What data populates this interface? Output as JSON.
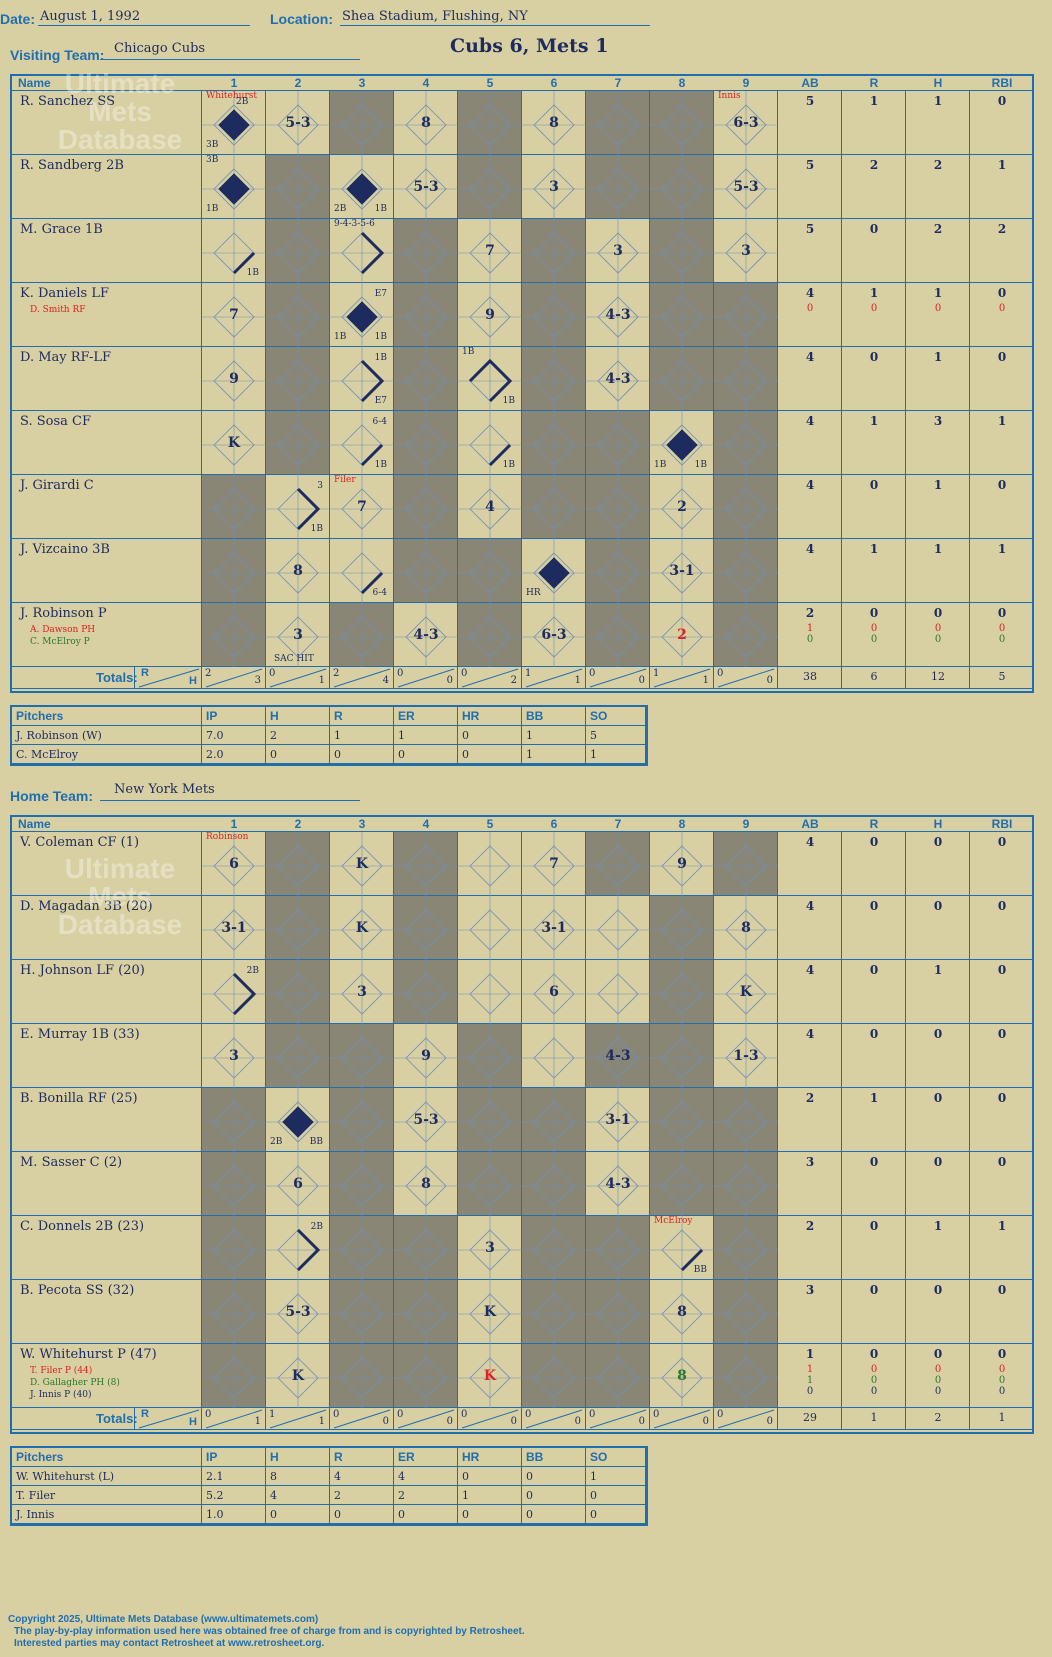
{
  "header": {
    "date_label": "Date:",
    "date": "August 1, 1992",
    "location_label": "Location:",
    "location": "Shea Stadium, Flushing, NY",
    "visiting_label": "Visiting Team:",
    "visiting_team": "Chicago Cubs",
    "score_title": "Cubs 6, Mets 1",
    "home_label": "Home Team:",
    "home_team": "New York Mets"
  },
  "grid_headers": [
    "Name",
    "1",
    "2",
    "3",
    "4",
    "5",
    "6",
    "7",
    "8",
    "9",
    "AB",
    "R",
    "H",
    "RBI"
  ],
  "totals_label": "Totals:",
  "visitors": {
    "batters": [
      {
        "name": "R. Sanchez SS",
        "subs": [],
        "ab": "5",
        "r": "1",
        "h": "1",
        "rbi": "0"
      },
      {
        "name": "R. Sandberg 2B",
        "subs": [],
        "ab": "5",
        "r": "2",
        "h": "2",
        "rbi": "1"
      },
      {
        "name": "M. Grace 1B",
        "subs": [],
        "ab": "5",
        "r": "0",
        "h": "2",
        "rbi": "2"
      },
      {
        "name": "K. Daniels LF",
        "subs": [
          {
            "name": "D. Smith RF",
            "ab": "0",
            "r": "0",
            "h": "0",
            "rbi": "0",
            "color": "red"
          }
        ],
        "ab": "4",
        "r": "1",
        "h": "1",
        "rbi": "0"
      },
      {
        "name": "D. May RF-LF",
        "subs": [],
        "ab": "4",
        "r": "0",
        "h": "1",
        "rbi": "0"
      },
      {
        "name": "S. Sosa CF",
        "subs": [],
        "ab": "4",
        "r": "1",
        "h": "3",
        "rbi": "1"
      },
      {
        "name": "J. Girardi C",
        "subs": [],
        "ab": "4",
        "r": "0",
        "h": "1",
        "rbi": "0"
      },
      {
        "name": "J. Vizcaino 3B",
        "subs": [],
        "ab": "4",
        "r": "1",
        "h": "1",
        "rbi": "1"
      },
      {
        "name": "J. Robinson P",
        "subs": [
          {
            "name": "A. Dawson PH",
            "ab": "1",
            "r": "0",
            "h": "0",
            "rbi": "0",
            "color": "red"
          },
          {
            "name": "C. McElroy P",
            "ab": "0",
            "r": "0",
            "h": "0",
            "rbi": "0",
            "color": "grn"
          }
        ],
        "ab": "2",
        "r": "0",
        "h": "0",
        "rbi": "0"
      }
    ],
    "marks": [
      [
        {
          "i": 0,
          "t": "",
          "dia": true,
          "s": [
            [
              "Whitehurst",
              "tl",
              "red"
            ],
            [
              "2B",
              "tr2",
              ""
            ],
            [
              "3B",
              "bl",
              ""
            ]
          ]
        },
        {
          "i": 1,
          "t": "5-3"
        },
        {
          "i": 3,
          "t": "8"
        },
        {
          "i": 5,
          "t": "8"
        },
        {
          "i": 8,
          "t": "6-3",
          "s": [
            [
              "Innis",
              "tl",
              "red"
            ]
          ]
        }
      ],
      [
        {
          "i": 0,
          "t": "",
          "dia": true,
          "s": [
            [
              "3B",
              "tl",
              ""
            ],
            [
              "1B",
              "bl",
              ""
            ]
          ]
        },
        {
          "i": 2,
          "t": "",
          "dia": true,
          "s": [
            [
              "2B",
              "bl",
              ""
            ],
            [
              "1B",
              "br",
              ""
            ]
          ]
        },
        {
          "i": 3,
          "t": "5-3"
        },
        {
          "i": 5,
          "t": "3"
        },
        {
          "i": 8,
          "t": "5-3"
        }
      ],
      [
        {
          "i": 0,
          "t": "",
          "line": true,
          "s": [
            [
              "1B",
              "br",
              ""
            ]
          ]
        },
        {
          "i": 2,
          "t": "",
          "half": true,
          "s": [
            [
              "9-4-3-5-6",
              "tl",
              ""
            ]
          ]
        },
        {
          "i": 4,
          "t": "7"
        },
        {
          "i": 6,
          "t": "3"
        },
        {
          "i": 8,
          "t": "3"
        }
      ],
      [
        {
          "i": 0,
          "t": "7"
        },
        {
          "i": 2,
          "t": "",
          "dia": true,
          "s": [
            [
              "E7",
              "tr",
              ""
            ],
            [
              "1B",
              "bl",
              ""
            ],
            [
              "1B",
              "br",
              ""
            ]
          ]
        },
        {
          "i": 4,
          "t": "9"
        },
        {
          "i": 6,
          "t": "4-3"
        }
      ],
      [
        {
          "i": 0,
          "t": "9"
        },
        {
          "i": 2,
          "t": "",
          "half": true,
          "s": [
            [
              "1B",
              "tr",
              ""
            ],
            [
              "E7",
              "br",
              ""
            ]
          ]
        },
        {
          "i": 4,
          "t": "",
          "half2": true,
          "s": [
            [
              "1B",
              "tl",
              ""
            ],
            [
              "1B",
              "br",
              ""
            ]
          ]
        },
        {
          "i": 6,
          "t": "4-3"
        }
      ],
      [
        {
          "i": 0,
          "t": "K"
        },
        {
          "i": 2,
          "t": "",
          "line": true,
          "s": [
            [
              "6-4",
              "tr",
              ""
            ],
            [
              "1B",
              "br",
              ""
            ]
          ]
        },
        {
          "i": 4,
          "t": "",
          "line": true,
          "s": [
            [
              "1B",
              "br",
              ""
            ]
          ]
        },
        {
          "i": 7,
          "t": "",
          "dia": true,
          "s": [
            [
              "1B",
              "bl",
              ""
            ],
            [
              "1B",
              "br",
              ""
            ]
          ]
        }
      ],
      [
        {
          "i": 1,
          "t": "",
          "half": true,
          "s": [
            [
              "3",
              "tr",
              ""
            ],
            [
              "1B",
              "br",
              ""
            ]
          ]
        },
        {
          "i": 2,
          "t": "7",
          "s": [
            [
              "Filer",
              "tl",
              "red"
            ]
          ]
        },
        {
          "i": 4,
          "t": "4"
        },
        {
          "i": 7,
          "t": "2"
        }
      ],
      [
        {
          "i": 1,
          "t": "8"
        },
        {
          "i": 2,
          "t": "",
          "line": true,
          "s": [
            [
              "6-4",
              "br",
              ""
            ]
          ]
        },
        {
          "i": 5,
          "t": "",
          "dia": true,
          "s": [
            [
              "HR",
              "bl",
              ""
            ]
          ]
        },
        {
          "i": 7,
          "t": "3-1"
        }
      ],
      [
        {
          "i": 1,
          "t": "3",
          "s": [
            [
              "SAC HIT",
              "bc",
              ""
            ]
          ]
        },
        {
          "i": 3,
          "t": "4-3"
        },
        {
          "i": 5,
          "t": "6-3"
        },
        {
          "i": 7,
          "t": "2",
          "c": "red"
        }
      ]
    ],
    "dark": [
      [
        2,
        4,
        6,
        7
      ],
      [
        1,
        4,
        6,
        7
      ],
      [
        1,
        3,
        5,
        7
      ],
      [
        1,
        3,
        5,
        7,
        8
      ],
      [
        1,
        3,
        5,
        7,
        8
      ],
      [
        1,
        3,
        5,
        6,
        8
      ],
      [
        0,
        3,
        5,
        6,
        8
      ],
      [
        0,
        3,
        4,
        6,
        8
      ],
      [
        0,
        2,
        4,
        6,
        8
      ]
    ],
    "totals": [
      [
        "2",
        "3"
      ],
      [
        "0",
        "1"
      ],
      [
        "2",
        "4"
      ],
      [
        "0",
        "0"
      ],
      [
        "0",
        "2"
      ],
      [
        "1",
        "1"
      ],
      [
        "0",
        "0"
      ],
      [
        "1",
        "1"
      ],
      [
        "0",
        "0"
      ]
    ],
    "totals_stats": {
      "ab": "38",
      "r": "6",
      "h": "12",
      "rbi": "5"
    },
    "pitchers": [
      {
        "name": "J. Robinson (W)",
        "ip": "7.0",
        "h": "2",
        "r": "1",
        "er": "1",
        "hr": "0",
        "bb": "1",
        "so": "5"
      },
      {
        "name": "C. McElroy",
        "ip": "2.0",
        "h": "0",
        "r": "0",
        "er": "0",
        "hr": "0",
        "bb": "1",
        "so": "1"
      }
    ]
  },
  "home": {
    "batters": [
      {
        "name": "V. Coleman CF (1)",
        "subs": [],
        "ab": "4",
        "r": "0",
        "h": "0",
        "rbi": "0"
      },
      {
        "name": "D. Magadan 3B (20)",
        "subs": [],
        "ab": "4",
        "r": "0",
        "h": "0",
        "rbi": "0"
      },
      {
        "name": "H. Johnson LF (20)",
        "subs": [],
        "ab": "4",
        "r": "0",
        "h": "1",
        "rbi": "0"
      },
      {
        "name": "E. Murray 1B (33)",
        "subs": [],
        "ab": "4",
        "r": "0",
        "h": "0",
        "rbi": "0"
      },
      {
        "name": "B. Bonilla RF (25)",
        "subs": [],
        "ab": "2",
        "r": "1",
        "h": "0",
        "rbi": "0"
      },
      {
        "name": "M. Sasser C (2)",
        "subs": [],
        "ab": "3",
        "r": "0",
        "h": "0",
        "rbi": "0"
      },
      {
        "name": "C. Donnels 2B (23)",
        "subs": [],
        "ab": "2",
        "r": "0",
        "h": "1",
        "rbi": "1"
      },
      {
        "name": "B. Pecota SS (32)",
        "subs": [],
        "ab": "3",
        "r": "0",
        "h": "0",
        "rbi": "0"
      },
      {
        "name": "W. Whitehurst P (47)",
        "subs": [
          {
            "name": "T. Filer P (44)",
            "ab": "1",
            "r": "0",
            "h": "0",
            "rbi": "0",
            "color": "red"
          },
          {
            "name": "D. Gallagher PH (8)",
            "ab": "1",
            "r": "0",
            "h": "0",
            "rbi": "0",
            "color": "grn"
          },
          {
            "name": "J. Innis P (40)",
            "ab": "0",
            "r": "0",
            "h": "0",
            "rbi": "0",
            "color": ""
          }
        ],
        "ab": "1",
        "r": "0",
        "h": "0",
        "rbi": "0"
      }
    ],
    "marks": [
      [
        {
          "i": 0,
          "t": "6",
          "s": [
            [
              "Robinson",
              "tl",
              "red"
            ]
          ]
        },
        {
          "i": 2,
          "t": "K"
        },
        {
          "i": 5,
          "t": "7"
        },
        {
          "i": 7,
          "t": "9"
        }
      ],
      [
        {
          "i": 0,
          "t": "3-1"
        },
        {
          "i": 2,
          "t": "K"
        },
        {
          "i": 5,
          "t": "3-1"
        },
        {
          "i": 8,
          "t": "8"
        }
      ],
      [
        {
          "i": 0,
          "t": "",
          "half": true,
          "s": [
            [
              "2B",
              "tr",
              ""
            ]
          ]
        },
        {
          "i": 2,
          "t": "3"
        },
        {
          "i": 5,
          "t": "6"
        },
        {
          "i": 8,
          "t": "K"
        }
      ],
      [
        {
          "i": 0,
          "t": "3"
        },
        {
          "i": 3,
          "t": "9"
        },
        {
          "i": 6,
          "t": "4-3"
        },
        {
          "i": 8,
          "t": "1-3"
        }
      ],
      [
        {
          "i": 1,
          "t": "",
          "dia": true,
          "s": [
            [
              "2B",
              "bl",
              ""
            ],
            [
              "BB",
              "br",
              ""
            ]
          ]
        },
        {
          "i": 3,
          "t": "5-3"
        },
        {
          "i": 6,
          "t": "3-1"
        }
      ],
      [
        {
          "i": 1,
          "t": "6"
        },
        {
          "i": 3,
          "t": "8"
        },
        {
          "i": 6,
          "t": "4-3"
        }
      ],
      [
        {
          "i": 1,
          "t": "",
          "half": true,
          "s": [
            [
              "2B",
              "tr",
              ""
            ]
          ]
        },
        {
          "i": 4,
          "t": "3"
        },
        {
          "i": 7,
          "t": "",
          "line": true,
          "s": [
            [
              "McElroy",
              "tl",
              "red"
            ],
            [
              "BB",
              "br",
              ""
            ]
          ]
        }
      ],
      [
        {
          "i": 1,
          "t": "5-3"
        },
        {
          "i": 4,
          "t": "K"
        },
        {
          "i": 7,
          "t": "8"
        }
      ],
      [
        {
          "i": 1,
          "t": "K"
        },
        {
          "i": 4,
          "t": "K",
          "c": "red"
        },
        {
          "i": 7,
          "t": "8",
          "c": "grn"
        }
      ]
    ],
    "dark": [
      [
        1,
        3,
        6,
        8
      ],
      [
        1,
        3,
        7
      ],
      [
        1,
        3,
        7
      ],
      [
        1,
        2,
        4,
        6,
        7
      ],
      [
        0,
        2,
        4,
        5,
        7,
        8
      ],
      [
        0,
        2,
        4,
        5,
        7,
        8
      ],
      [
        0,
        2,
        3,
        5,
        6,
        8
      ],
      [
        0,
        2,
        3,
        5,
        6,
        8
      ],
      [
        0,
        2,
        3,
        5,
        6,
        8
      ]
    ],
    "totals": [
      [
        "0",
        "1"
      ],
      [
        "1",
        "1"
      ],
      [
        "0",
        "0"
      ],
      [
        "0",
        "0"
      ],
      [
        "0",
        "0"
      ],
      [
        "0",
        "0"
      ],
      [
        "0",
        "0"
      ],
      [
        "0",
        "0"
      ],
      [
        "0",
        "0"
      ]
    ],
    "totals_stats": {
      "ab": "29",
      "r": "1",
      "h": "2",
      "rbi": "1"
    },
    "pitchers": [
      {
        "name": "W. Whitehurst (L)",
        "ip": "2.1",
        "h": "8",
        "r": "4",
        "er": "4",
        "hr": "0",
        "bb": "0",
        "so": "1"
      },
      {
        "name": "T. Filer",
        "ip": "5.2",
        "h": "4",
        "r": "2",
        "er": "2",
        "hr": "1",
        "bb": "0",
        "so": "0"
      },
      {
        "name": "J. Innis",
        "ip": "1.0",
        "h": "0",
        "r": "0",
        "er": "0",
        "hr": "0",
        "bb": "0",
        "so": "0"
      }
    ]
  },
  "pitcher_headers": [
    "Pitchers",
    "IP",
    "H",
    "R",
    "ER",
    "HR",
    "BB",
    "SO"
  ],
  "watermark": "Ultimate Mets Database",
  "watermark_url": "ultimatemets.com",
  "footer": [
    "Copyright 2025, Ultimate Mets Database (www.ultimatemets.com)",
    "The play-by-play information used here was obtained free of charge from and is copyrighted by Retrosheet.",
    "Interested parties may contact Retrosheet at www.retrosheet.org."
  ],
  "colors": {
    "bg": "#d8cfa2",
    "grid": "#1f6fb0",
    "ink": "#1d2b5e",
    "dark": "#8a8676"
  }
}
